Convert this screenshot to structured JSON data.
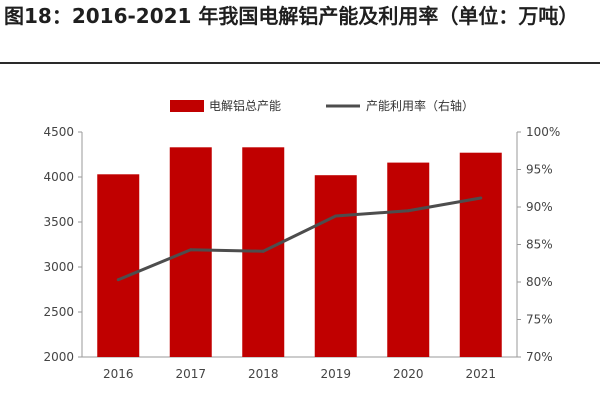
{
  "figure": {
    "title": "图18：2016-2021 年我国电解铝产能及利用率（单位：万吨）"
  },
  "chart_data": {
    "type": "bar",
    "categories": [
      "2016",
      "2017",
      "2018",
      "2019",
      "2020",
      "2021"
    ],
    "series": [
      {
        "name": "电解铝总产能",
        "type": "bar",
        "axis": "left",
        "color": "#c00000",
        "values": [
          4030,
          4330,
          4330,
          4020,
          4160,
          4270
        ]
      },
      {
        "name": "产能利用率（右轴）",
        "type": "line",
        "axis": "right",
        "color": "#4d4d4d",
        "values": [
          80.3,
          84.3,
          84.1,
          88.8,
          89.5,
          91.2
        ]
      }
    ],
    "y_left": {
      "min": 2000,
      "max": 4500,
      "ticks": [
        "2000",
        "2500",
        "3000",
        "3500",
        "4000",
        "4500"
      ]
    },
    "y_right": {
      "min": 70,
      "max": 100,
      "ticks": [
        "70%",
        "75%",
        "80%",
        "85%",
        "90%",
        "95%",
        "100%"
      ]
    },
    "legend_position": "top",
    "grid": false
  }
}
